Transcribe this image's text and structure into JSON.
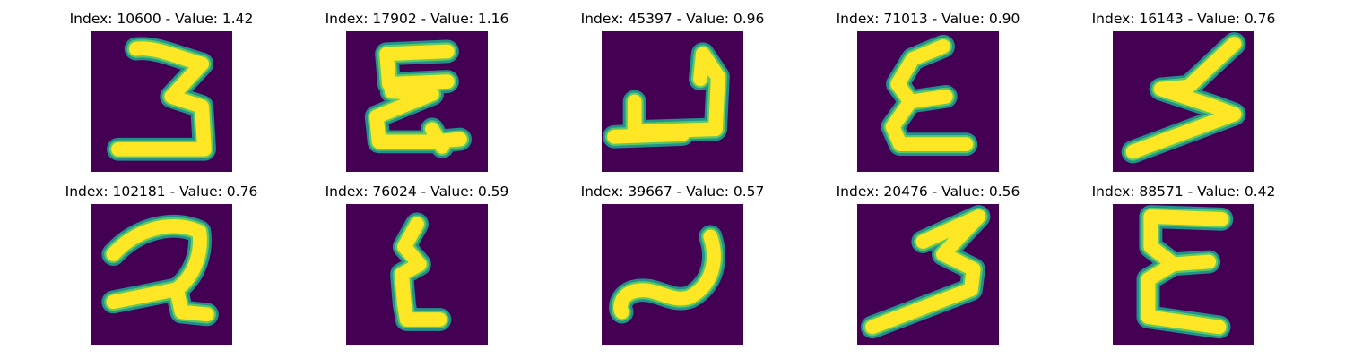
{
  "colors": {
    "background": "#440154",
    "stroke_edge": "#21918c",
    "stroke_mid": "#5ec962",
    "stroke_core": "#fde725"
  },
  "panels": [
    {
      "title": "Index: 10600 - Value: 1.42",
      "glyph": "three"
    },
    {
      "title": "Index: 17902 - Value: 1.16",
      "glyph": "epsilon-curl"
    },
    {
      "title": "Index: 45397 - Value: 0.96",
      "glyph": "hook"
    },
    {
      "title": "Index: 71013 - Value: 0.90",
      "glyph": "epsilon"
    },
    {
      "title": "Index: 16143 - Value: 0.76",
      "glyph": "slanted-three"
    },
    {
      "title": "Index: 102181 - Value: 0.76",
      "glyph": "two-loop"
    },
    {
      "title": "Index: 76024 - Value: 0.59",
      "glyph": "narrow-epsilon"
    },
    {
      "title": "Index: 39667 - Value: 0.57",
      "glyph": "wave"
    },
    {
      "title": "Index: 20476 - Value: 0.56",
      "glyph": "long-three"
    },
    {
      "title": "Index: 88571 - Value: 0.42",
      "glyph": "tall-epsilon"
    }
  ]
}
